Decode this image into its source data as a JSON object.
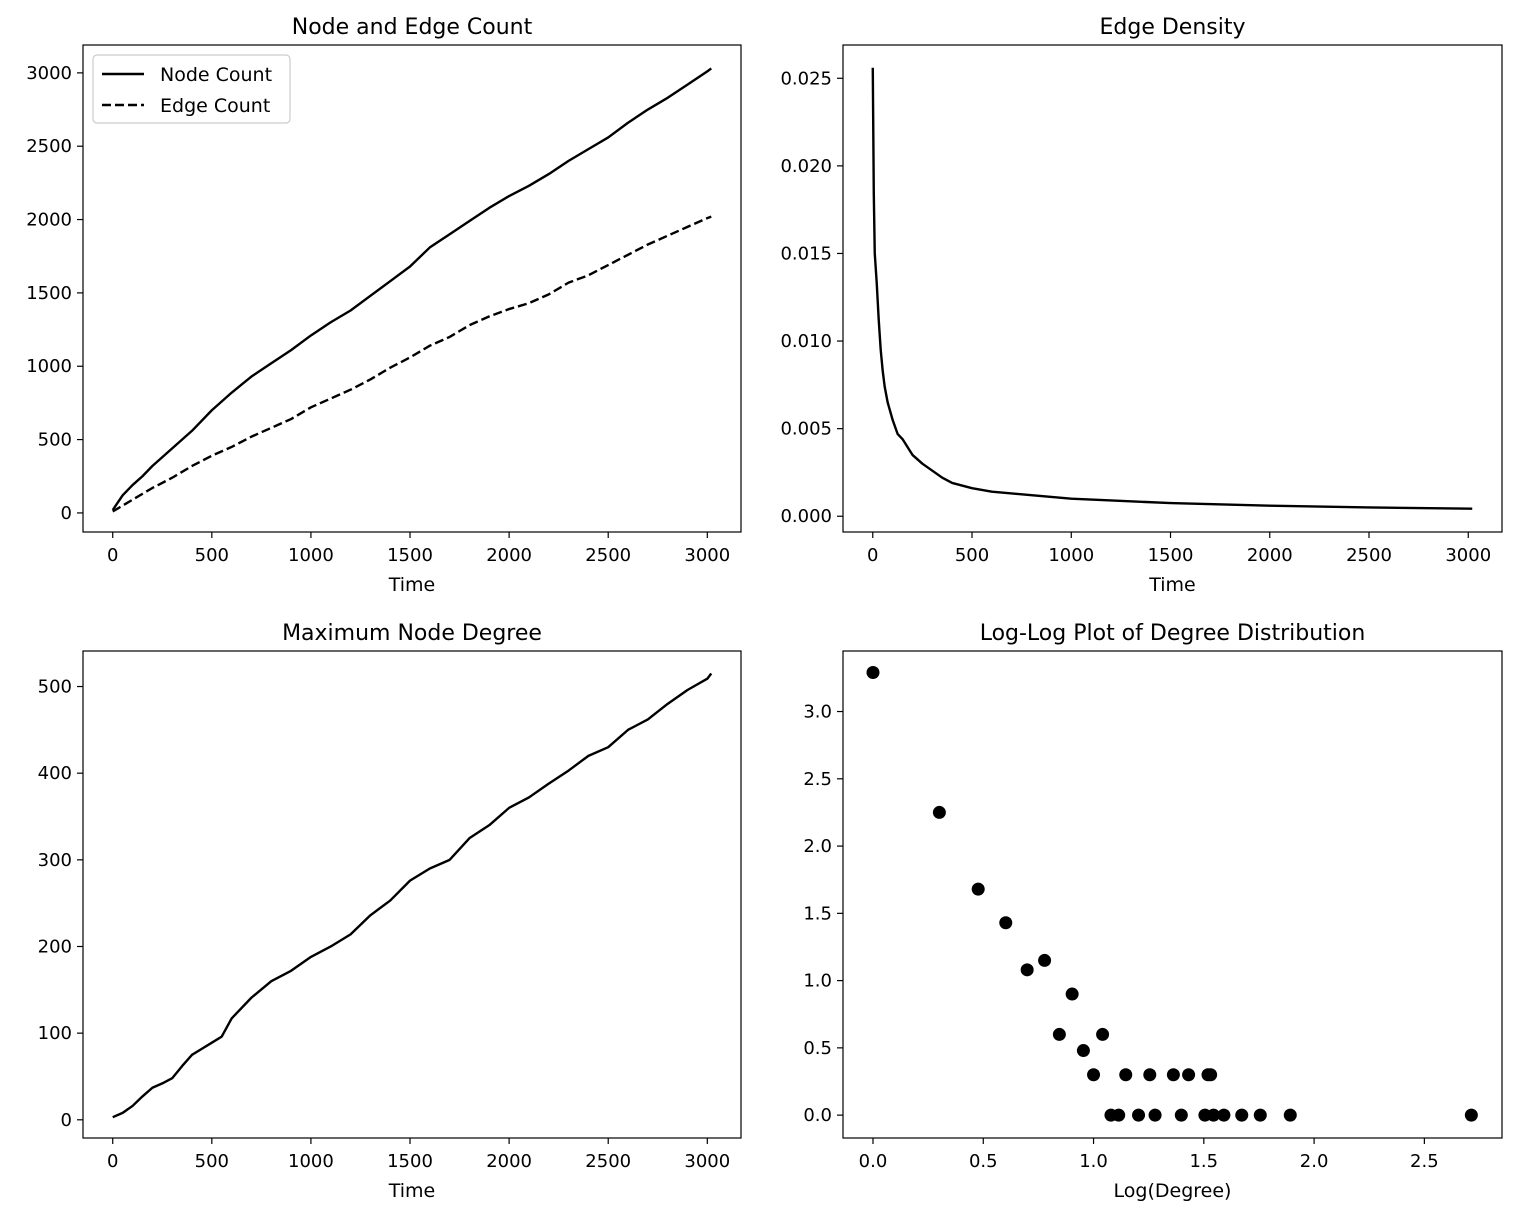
{
  "chart_data": [
    {
      "type": "line",
      "title": "Node and Edge Count",
      "xlabel": "Time",
      "ylabel": "",
      "xlim": [
        -150,
        3170
      ],
      "ylim": [
        -130,
        3190
      ],
      "xticks": [
        0,
        500,
        1000,
        1500,
        2000,
        2500,
        3000
      ],
      "yticks": [
        0,
        500,
        1000,
        1500,
        2000,
        2500,
        3000
      ],
      "legend": "upper-left",
      "series": [
        {
          "name": "Node Count",
          "style": "solid",
          "x": [
            0,
            50,
            100,
            150,
            200,
            300,
            400,
            500,
            600,
            700,
            800,
            900,
            1000,
            1100,
            1200,
            1300,
            1400,
            1500,
            1600,
            1700,
            1800,
            1900,
            2000,
            2100,
            2200,
            2300,
            2400,
            2500,
            2600,
            2700,
            2800,
            2900,
            3000,
            3020
          ],
          "y": [
            20,
            120,
            190,
            250,
            320,
            440,
            560,
            700,
            820,
            930,
            1020,
            1110,
            1210,
            1300,
            1380,
            1480,
            1580,
            1680,
            1810,
            1900,
            1990,
            2080,
            2160,
            2230,
            2310,
            2400,
            2480,
            2560,
            2660,
            2750,
            2830,
            2920,
            3010,
            3030
          ]
        },
        {
          "name": "Edge Count",
          "style": "dashed",
          "x": [
            0,
            100,
            200,
            300,
            400,
            500,
            600,
            700,
            800,
            900,
            1000,
            1100,
            1200,
            1300,
            1400,
            1500,
            1600,
            1700,
            1800,
            1900,
            2000,
            2100,
            2200,
            2300,
            2400,
            2500,
            2600,
            2700,
            2800,
            2900,
            3000,
            3020
          ],
          "y": [
            10,
            90,
            170,
            240,
            320,
            390,
            450,
            520,
            580,
            640,
            720,
            780,
            840,
            910,
            990,
            1060,
            1140,
            1200,
            1280,
            1340,
            1390,
            1430,
            1490,
            1570,
            1620,
            1690,
            1760,
            1830,
            1890,
            1950,
            2010,
            2020
          ]
        }
      ]
    },
    {
      "type": "line",
      "title": "Edge Density",
      "xlabel": "Time",
      "ylabel": "",
      "xlim": [
        -150,
        3170
      ],
      "ylim": [
        -0.0009,
        0.0269
      ],
      "xticks": [
        0,
        500,
        1000,
        1500,
        2000,
        2500,
        3000
      ],
      "yticks": [
        0.0,
        0.005,
        0.01,
        0.015,
        0.02,
        0.025
      ],
      "ytick_labels": [
        "0.000",
        "0.005",
        "0.010",
        "0.015",
        "0.020",
        "0.025"
      ],
      "series": [
        {
          "x": [
            0,
            5,
            10,
            20,
            30,
            40,
            50,
            60,
            75,
            100,
            125,
            150,
            200,
            250,
            300,
            350,
            400,
            500,
            600,
            700,
            800,
            1000,
            1200,
            1500,
            2000,
            2500,
            3020
          ],
          "y": [
            0.0256,
            0.0185,
            0.015,
            0.0133,
            0.0112,
            0.0095,
            0.0083,
            0.0074,
            0.0065,
            0.0055,
            0.0047,
            0.0044,
            0.0035,
            0.003,
            0.0026,
            0.0022,
            0.0019,
            0.0016,
            0.0014,
            0.0013,
            0.0012,
            0.001,
            0.0009,
            0.00075,
            0.0006,
            0.0005,
            0.00043
          ]
        }
      ]
    },
    {
      "type": "line",
      "title": "Maximum Node Degree",
      "xlabel": "Time",
      "ylabel": "",
      "xlim": [
        -150,
        3170
      ],
      "ylim": [
        -21,
        541
      ],
      "xticks": [
        0,
        500,
        1000,
        1500,
        2000,
        2500,
        3000
      ],
      "yticks": [
        0,
        100,
        200,
        300,
        400,
        500
      ],
      "series": [
        {
          "x": [
            0,
            50,
            100,
            150,
            200,
            250,
            300,
            350,
            400,
            450,
            500,
            550,
            600,
            700,
            800,
            900,
            1000,
            1100,
            1200,
            1300,
            1400,
            1500,
            1600,
            1700,
            1800,
            1900,
            2000,
            2100,
            2200,
            2300,
            2400,
            2500,
            2600,
            2700,
            2800,
            2900,
            3000,
            3020
          ],
          "y": [
            3,
            8,
            16,
            27,
            37,
            42,
            48,
            62,
            75,
            82,
            89,
            96,
            117,
            141,
            160,
            172,
            188,
            200,
            214,
            236,
            253,
            276,
            290,
            300,
            325,
            340,
            360,
            372,
            388,
            403,
            420,
            430,
            450,
            462,
            480,
            496,
            509,
            515
          ]
        }
      ]
    },
    {
      "type": "scatter",
      "title": "Log-Log Plot of Degree Distribution",
      "xlabel": "Log(Degree)",
      "ylabel": "",
      "xlim": [
        -0.136,
        2.852
      ],
      "ylim": [
        -0.17,
        3.45
      ],
      "xticks": [
        0.0,
        0.5,
        1.0,
        1.5,
        2.0,
        2.5
      ],
      "yticks": [
        0.0,
        0.5,
        1.0,
        1.5,
        2.0,
        2.5,
        3.0
      ],
      "series": [
        {
          "x": [
            0.0,
            0.301,
            0.477,
            0.602,
            0.699,
            0.778,
            0.845,
            0.903,
            0.954,
            1.0,
            1.041,
            1.079,
            1.114,
            1.146,
            1.204,
            1.255,
            1.279,
            1.362,
            1.398,
            1.431,
            1.505,
            1.519,
            1.531,
            1.544,
            1.591,
            1.672,
            1.756,
            1.892,
            2.713
          ],
          "y": [
            3.29,
            2.25,
            1.68,
            1.43,
            1.08,
            1.15,
            0.6,
            0.9,
            0.48,
            0.3,
            0.6,
            0.0,
            0.0,
            0.3,
            0.0,
            0.3,
            0.0,
            0.3,
            0.0,
            0.3,
            0.0,
            0.3,
            0.3,
            0.0,
            0.0,
            0.0,
            0.0,
            0.0,
            0.0
          ]
        }
      ]
    }
  ]
}
